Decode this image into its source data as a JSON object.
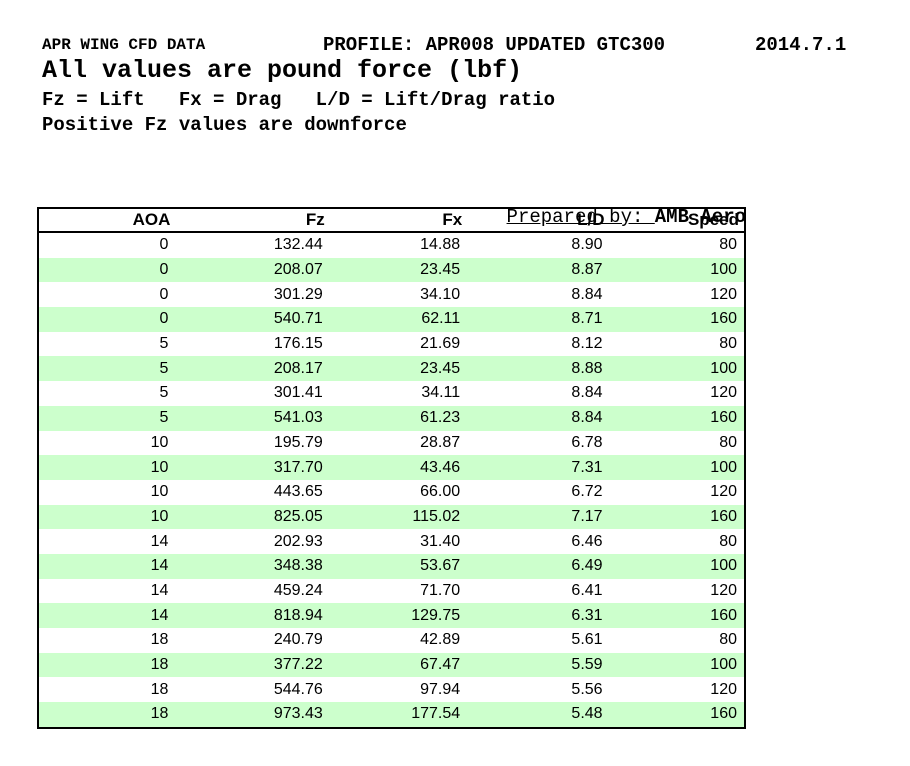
{
  "header": {
    "title": "APR WING CFD DATA",
    "profile": "PROFILE: APR008 UPDATED GTC300",
    "date": "2014.7.1",
    "subtitle": "All values are pound force (lbf)",
    "legend": "Fz = Lift   Fx = Drag   L/D = Lift/Drag ratio",
    "note": "Positive Fz values are downforce"
  },
  "prepared_by": {
    "label": "Prepared by: ",
    "value": "AMB Aero"
  },
  "colors": {
    "stripe_green": "#ccffcc",
    "border_black": "#000000",
    "text": "#000000",
    "page_background": "#ffffff"
  },
  "table": {
    "columns": [
      "AOA",
      "Fz",
      "Fx",
      "L/D",
      "Speed"
    ],
    "rows": [
      [
        "0",
        "132.44",
        "14.88",
        "8.90",
        "80"
      ],
      [
        "0",
        "208.07",
        "23.45",
        "8.87",
        "100"
      ],
      [
        "0",
        "301.29",
        "34.10",
        "8.84",
        "120"
      ],
      [
        "0",
        "540.71",
        "62.11",
        "8.71",
        "160"
      ],
      [
        "5",
        "176.15",
        "21.69",
        "8.12",
        "80"
      ],
      [
        "5",
        "208.17",
        "23.45",
        "8.88",
        "100"
      ],
      [
        "5",
        "301.41",
        "34.11",
        "8.84",
        "120"
      ],
      [
        "5",
        "541.03",
        "61.23",
        "8.84",
        "160"
      ],
      [
        "10",
        "195.79",
        "28.87",
        "6.78",
        "80"
      ],
      [
        "10",
        "317.70",
        "43.46",
        "7.31",
        "100"
      ],
      [
        "10",
        "443.65",
        "66.00",
        "6.72",
        "120"
      ],
      [
        "10",
        "825.05",
        "115.02",
        "7.17",
        "160"
      ],
      [
        "14",
        "202.93",
        "31.40",
        "6.46",
        "80"
      ],
      [
        "14",
        "348.38",
        "53.67",
        "6.49",
        "100"
      ],
      [
        "14",
        "459.24",
        "71.70",
        "6.41",
        "120"
      ],
      [
        "14",
        "818.94",
        "129.75",
        "6.31",
        "160"
      ],
      [
        "18",
        "240.79",
        "42.89",
        "5.61",
        "80"
      ],
      [
        "18",
        "377.22",
        "67.47",
        "5.59",
        "100"
      ],
      [
        "18",
        "544.76",
        "97.94",
        "5.56",
        "120"
      ],
      [
        "18",
        "973.43",
        "177.54",
        "5.48",
        "160"
      ]
    ]
  }
}
